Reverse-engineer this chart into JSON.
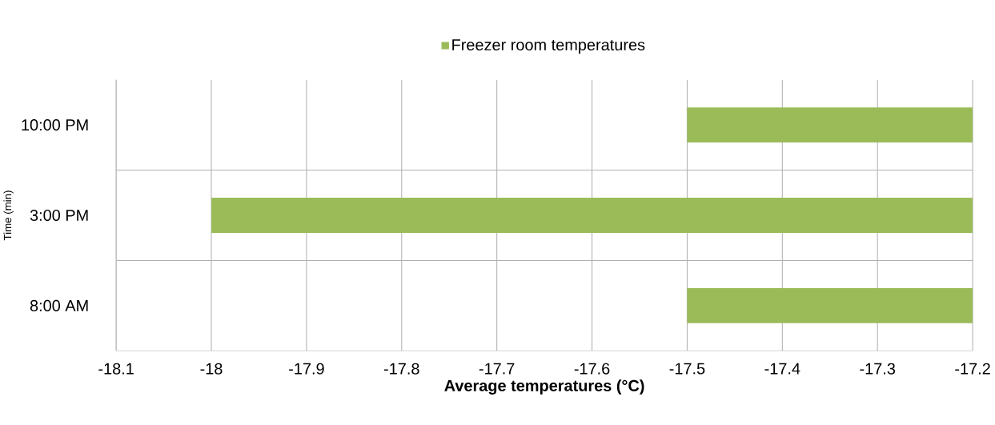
{
  "chart_data": {
    "type": "bar",
    "orientation": "horizontal",
    "categories": [
      "10:00 PM",
      "3:00 PM",
      "8:00 AM"
    ],
    "series": [
      {
        "name": "Freezer room temperatures",
        "color": "#9bbb59",
        "values": [
          -17.5,
          -18,
          -17.5
        ]
      }
    ],
    "xlabel": "Average temperatures  (°C)",
    "ylabel": "Time (min)",
    "xlim": [
      -18.1,
      -17.2
    ],
    "xticks": [
      -18.1,
      -18,
      -17.9,
      -17.8,
      -17.7,
      -17.6,
      -17.5,
      -17.4,
      -17.3,
      -17.2
    ],
    "grid": true,
    "legend": "top"
  }
}
